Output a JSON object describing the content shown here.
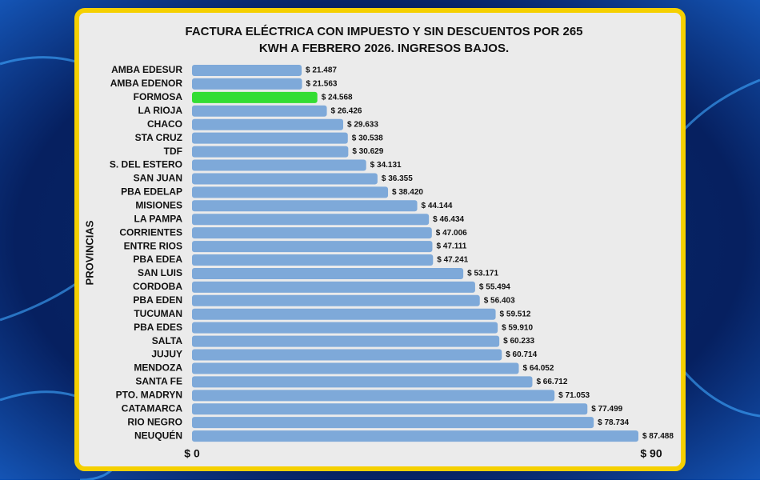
{
  "chart_data": {
    "type": "hbar",
    "title": [
      "FACTURA ELÉCTRICA CON IMPUESTO Y SIN DESCUENTOS POR 265",
      "KWH A FEBRERO 2026. INGRESOS BAJOS."
    ],
    "y_label": "PROVINCIAS",
    "categories": [
      "AMBA EDESUR",
      "AMBA EDENOR",
      "FORMOSA",
      "LA RIOJA",
      "CHACO",
      "STA CRUZ",
      "TDF",
      "S. DEL ESTERO",
      "SAN JUAN",
      "PBA EDELAP",
      "MISIONES",
      "LA PAMPA",
      "CORRIENTES",
      "ENTRE RIOS",
      "PBA EDEA",
      "SAN LUIS",
      "CORDOBA",
      "PBA EDEN",
      "TUCUMAN",
      "PBA EDES",
      "SALTA",
      "JUJUY",
      "MENDOZA",
      "SANTA FE",
      "PTO. MADRYN",
      "CATAMARCA",
      "RIO NEGRO",
      "NEUQUÉN"
    ],
    "values": [
      21.487,
      21.563,
      24.568,
      26.426,
      29.633,
      30.538,
      30.629,
      34.131,
      36.355,
      38.42,
      44.144,
      46.434,
      47.006,
      47.111,
      47.241,
      53.171,
      55.494,
      56.403,
      59.512,
      59.91,
      60.233,
      60.714,
      64.052,
      66.712,
      71.053,
      77.499,
      78.734,
      87.488
    ],
    "value_labels": [
      "$ 21.487",
      "$ 21.563",
      "$ 24.568",
      "$ 26.426",
      "$ 29.633",
      "$ 30.538",
      "$ 30.629",
      "$ 34.131",
      "$ 36.355",
      "$ 38.420",
      "$ 44.144",
      "$ 46.434",
      "$ 47.006",
      "$ 47.111",
      "$ 47.241",
      "$ 53.171",
      "$ 55.494",
      "$ 56.403",
      "$ 59.512",
      "$ 59.910",
      "$ 60.233",
      "$ 60.714",
      "$ 64.052",
      "$ 66.712",
      "$ 71.053",
      "$ 77.499",
      "$ 78.734",
      "$ 87.488"
    ],
    "colors": [
      "#7ea9d9",
      "#7ea9d9",
      "#33dd33",
      "#7ea9d9",
      "#7ea9d9",
      "#7ea9d9",
      "#7ea9d9",
      "#7ea9d9",
      "#7ea9d9",
      "#7ea9d9",
      "#7ea9d9",
      "#7ea9d9",
      "#7ea9d9",
      "#7ea9d9",
      "#7ea9d9",
      "#7ea9d9",
      "#7ea9d9",
      "#7ea9d9",
      "#7ea9d9",
      "#7ea9d9",
      "#7ea9d9",
      "#7ea9d9",
      "#7ea9d9",
      "#7ea9d9",
      "#7ea9d9",
      "#7ea9d9",
      "#7ea9d9",
      "#7ea9d9"
    ],
    "xlim": [
      0,
      90
    ],
    "xticks": [
      {
        "value": 0,
        "label": "$ 0"
      },
      {
        "value": 90,
        "label": "$ 90"
      }
    ]
  }
}
